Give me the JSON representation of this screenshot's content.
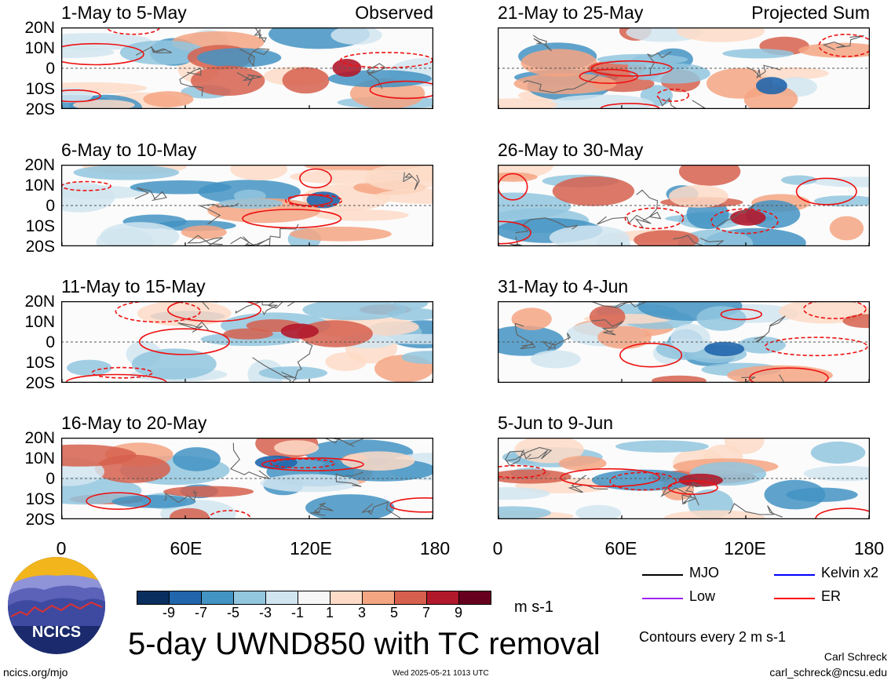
{
  "panels": [
    {
      "period": "1-May to 5-May",
      "label": "Observed"
    },
    {
      "period": "21-May to 25-May",
      "label": "Projected Sum"
    },
    {
      "period": "6-May to 10-May",
      "label": ""
    },
    {
      "period": "26-May to 30-May",
      "label": ""
    },
    {
      "period": "11-May to 15-May",
      "label": ""
    },
    {
      "period": "31-May to 4-Jun",
      "label": ""
    },
    {
      "period": "16-May to 20-May",
      "label": ""
    },
    {
      "period": "5-Jun to 9-Jun",
      "label": ""
    }
  ],
  "lat_labels": [
    "20N",
    "10N",
    "0",
    "10S",
    "20S"
  ],
  "lon_labels": [
    "0",
    "60E",
    "120E",
    "180"
  ],
  "colorbar": {
    "levels": [
      "-9",
      "-7",
      "-5",
      "-3",
      "-1",
      "1",
      "3",
      "5",
      "7",
      "9"
    ],
    "colors": [
      "#0a2f5e",
      "#2166ac",
      "#4393c3",
      "#92c5de",
      "#d1e5f0",
      "#f7f7f7",
      "#fddbc7",
      "#f4a582",
      "#d6604d",
      "#b2182b",
      "#67001f"
    ],
    "units": "m s-1"
  },
  "legend": [
    {
      "name": "MJO",
      "color": "#000000"
    },
    {
      "name": "Kelvin x2",
      "color": "#0000ff"
    },
    {
      "name": "Low",
      "color": "#a020f0"
    },
    {
      "name": "ER",
      "color": "#ff0000"
    }
  ],
  "title": "5-day UWND850 with TC removal",
  "contour_note": "Contours every 2 m s-1",
  "footer": {
    "left": "ncics.org/mjo",
    "center": "Wed 2025-05-21 1013 UTC",
    "author": "Carl Schreck",
    "email": "carl_schreck@ncsu.edu"
  },
  "logo_text": "NCICS",
  "chart_data": {
    "type": "heatmap",
    "variable": "850-hPa zonal wind anomaly",
    "units": "m s-1",
    "x_range": [
      "0",
      "180"
    ],
    "y_range": [
      "20S",
      "20N"
    ],
    "color_levels": [
      -9,
      -7,
      -5,
      -3,
      -1,
      1,
      3,
      5,
      7,
      9
    ]
  }
}
